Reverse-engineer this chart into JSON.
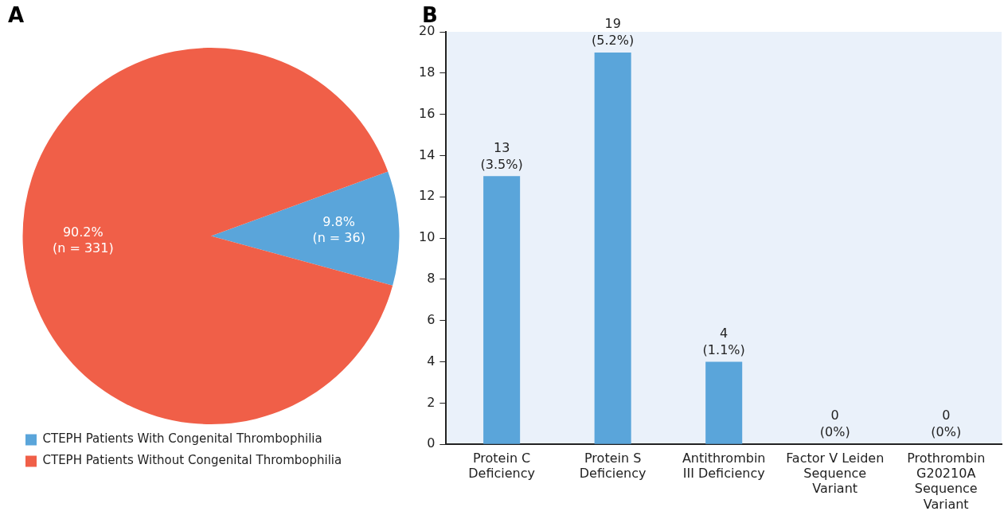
{
  "chart_data": [
    {
      "type": "pie",
      "title": "A",
      "categories": [
        "CTEPH Patients With Congenital Thrombophilia",
        "CTEPH Patients Without Congenital Thrombophilia"
      ],
      "values": [
        9.8,
        90.2
      ],
      "colors": [
        "#5aa5da",
        "#f05f48"
      ],
      "value_labels": [
        "9.8%\n(n = 36)",
        "90.2%\n(n = 331)"
      ],
      "legend": "bottom left"
    },
    {
      "type": "bar",
      "title": "B",
      "categories": [
        "Protein C\nDeficiency",
        "Protein S\nDeficiency",
        "Antithrombin\nIII Deficiency",
        "Factor V Leiden\nSequence\nVariant",
        "Prothrombin\nG20210A\nSequence\nVariant"
      ],
      "values": [
        13,
        19,
        4,
        0,
        0
      ],
      "color": "#5aa5da",
      "value_labels": [
        "13\n(3.5%)",
        "19\n(5.2%)",
        "4\n(1.1%)",
        "0\n(0%)",
        "0\n(0%)"
      ],
      "ylim": [
        0,
        20
      ],
      "yticks": [
        0,
        2,
        4,
        6,
        8,
        10,
        12,
        14,
        16,
        18,
        20
      ],
      "grid": false
    }
  ]
}
